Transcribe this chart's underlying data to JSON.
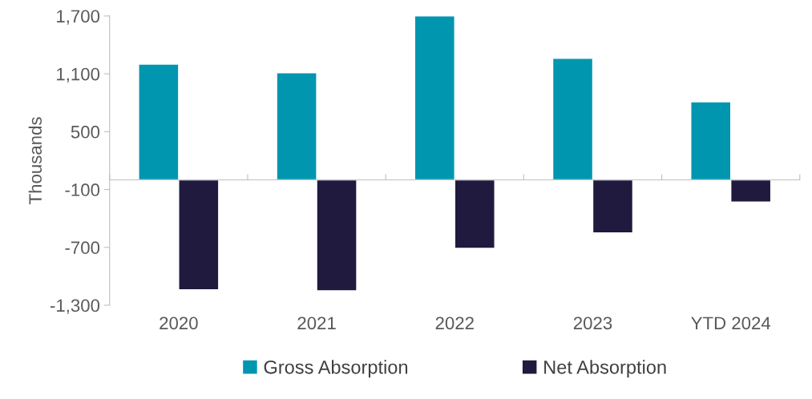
{
  "chart_data": {
    "type": "bar",
    "ylabel": "Thousands",
    "categories": [
      "2020",
      "2021",
      "2022",
      "2023",
      "YTD 2024"
    ],
    "series": [
      {
        "name": "Gross Absorption",
        "color": "#0096b0",
        "values": [
          1200,
          1110,
          1700,
          1260,
          810
        ]
      },
      {
        "name": "Net Absorption",
        "color": "#1f1a3e",
        "values": [
          -1140,
          -1150,
          -710,
          -550,
          -230
        ]
      }
    ],
    "ylim": [
      -1300,
      1700
    ],
    "yticks": [
      {
        "value": 1700,
        "label": "1,700"
      },
      {
        "value": 1100,
        "label": "1,100"
      },
      500,
      {
        "value": -100,
        "label": "-100"
      },
      {
        "value": -700,
        "label": "-700"
      },
      {
        "value": -1300,
        "label": "-1,300"
      }
    ],
    "grid": false,
    "legend": "bottom"
  }
}
